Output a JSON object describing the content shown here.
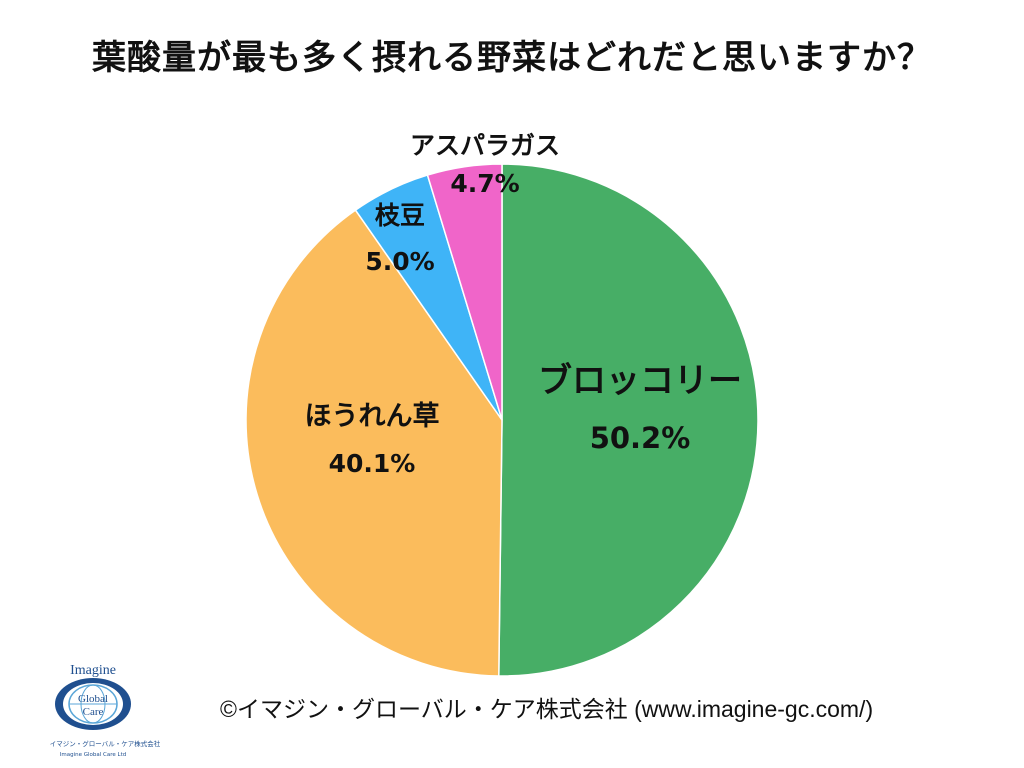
{
  "title": "葉酸量が最も多く摂れる野菜はどれだと思いますか？",
  "chart_data": {
    "type": "pie",
    "title": "葉酸量が最も多く摂れる野菜はどれだと思いますか？",
    "slices": [
      {
        "label": "ブロッコリー",
        "value": 50.2,
        "value_text": "50.2%",
        "color": "#47ae66"
      },
      {
        "label": "ほうれん草",
        "value": 40.1,
        "value_text": "40.1%",
        "color": "#fbbc5c"
      },
      {
        "label": "枝豆",
        "value": 5.0,
        "value_text": "5.0%",
        "color": "#3fb4f7"
      },
      {
        "label": "アスパラガス",
        "value": 4.7,
        "value_text": "4.7%",
        "color": "#f065c9"
      }
    ],
    "start": "12 o'clock",
    "direction": "clockwise"
  },
  "footer": {
    "copyright": "©イマジン・グローバル・ケア株式会社 (www.imagine-gc.com/)"
  },
  "logo": {
    "word_top": "Imagine",
    "word_mid1": "Global",
    "word_mid2": "Care",
    "caption_jp": "イマジン・グローバル・ケア株式会社",
    "caption_en": "Imagine Global Care Ltd"
  }
}
